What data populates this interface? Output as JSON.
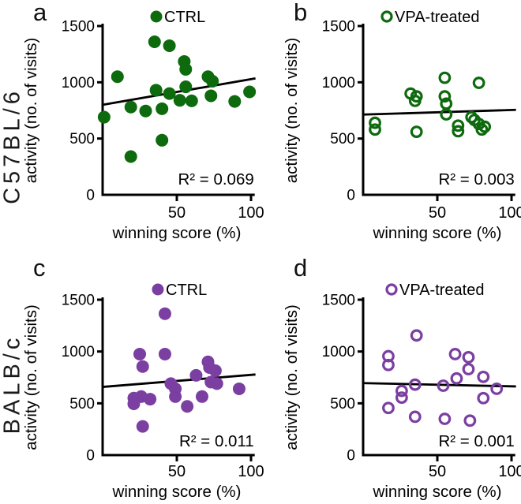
{
  "rows": [
    {
      "label": "C57BL/6"
    },
    {
      "label": "BALB/c"
    }
  ],
  "colors": {
    "ctrl_vpa_green": "#0d6a0d",
    "balb_purple": "#7b3fa2",
    "axis_black": "#000000",
    "trend_black": "#000000"
  },
  "chart_data": [
    {
      "panel_letter": "a",
      "type": "scatter",
      "strain": "C57BL/6",
      "legend": "CTRL",
      "marker": "filled",
      "color": "#0d6a0d",
      "xlabel": "winning score (%)",
      "ylabel": "activity (no. of visits)",
      "xticks": [
        50,
        100
      ],
      "yticks": [
        0,
        500,
        1000,
        1500
      ],
      "xlim": [
        0,
        105
      ],
      "ylim": [
        0,
        1600
      ],
      "r2_label": "R² = 0.069",
      "r_squared": 0.069,
      "points": [
        [
          35,
          1360
        ],
        [
          45,
          1325
        ],
        [
          55,
          1185
        ],
        [
          56,
          1115
        ],
        [
          10,
          1050
        ],
        [
          71,
          1050
        ],
        [
          74,
          1010
        ],
        [
          56,
          960
        ],
        [
          36,
          930
        ],
        [
          45,
          900
        ],
        [
          99,
          915
        ],
        [
          52,
          840
        ],
        [
          60,
          835
        ],
        [
          73,
          880
        ],
        [
          89,
          830
        ],
        [
          19,
          780
        ],
        [
          29,
          745
        ],
        [
          40,
          765
        ],
        [
          1,
          690
        ],
        [
          40,
          485
        ],
        [
          19,
          340
        ]
      ],
      "trend": {
        "x": [
          0,
          103
        ],
        "y": [
          800,
          1035
        ]
      }
    },
    {
      "panel_letter": "b",
      "type": "scatter",
      "strain": "C57BL/6",
      "legend": "VPA-treated",
      "marker": "open",
      "color": "#0d6a0d",
      "xlabel": "winning score (%)",
      "ylabel": "activity (no. of visits)",
      "xticks": [
        50,
        100
      ],
      "yticks": [
        0,
        500,
        1000,
        1500
      ],
      "xlim": [
        0,
        105
      ],
      "ylim": [
        0,
        1600
      ],
      "r2_label": "R² = 0.003",
      "r_squared": 0.003,
      "points": [
        [
          55,
          1040
        ],
        [
          78,
          995
        ],
        [
          32,
          900
        ],
        [
          36,
          875
        ],
        [
          55,
          875
        ],
        [
          35,
          835
        ],
        [
          56,
          810
        ],
        [
          56,
          715
        ],
        [
          8,
          640
        ],
        [
          8,
          580
        ],
        [
          36,
          560
        ],
        [
          64,
          615
        ],
        [
          64,
          565
        ],
        [
          73,
          690
        ],
        [
          75,
          665
        ],
        [
          78,
          630
        ],
        [
          82,
          605
        ],
        [
          80,
          580
        ]
      ],
      "trend": {
        "x": [
          0,
          103
        ],
        "y": [
          713,
          755
        ]
      }
    },
    {
      "panel_letter": "c",
      "type": "scatter",
      "strain": "BALB/c",
      "legend": "CTRL",
      "marker": "filled",
      "color": "#7b3fa2",
      "xlabel": "winning score (%)",
      "ylabel": "activity (no. of visits)",
      "xticks": [
        50,
        100
      ],
      "yticks": [
        0,
        500,
        1000,
        1500
      ],
      "xlim": [
        0,
        105
      ],
      "ylim": [
        0,
        1600
      ],
      "r2_label": "R² = 0.011",
      "r_squared": 0.011,
      "points": [
        [
          42,
          1365
        ],
        [
          25,
          975
        ],
        [
          42,
          975
        ],
        [
          71,
          900
        ],
        [
          27,
          855
        ],
        [
          72,
          845
        ],
        [
          76,
          815
        ],
        [
          63,
          770
        ],
        [
          73,
          705
        ],
        [
          46,
          690
        ],
        [
          77,
          690
        ],
        [
          49,
          640
        ],
        [
          92,
          640
        ],
        [
          26,
          565
        ],
        [
          21,
          550
        ],
        [
          32,
          540
        ],
        [
          49,
          565
        ],
        [
          67,
          565
        ],
        [
          21,
          495
        ],
        [
          57,
          470
        ],
        [
          27,
          277
        ]
      ],
      "trend": {
        "x": [
          0,
          103
        ],
        "y": [
          658,
          778
        ]
      }
    },
    {
      "panel_letter": "d",
      "type": "scatter",
      "strain": "BALB/c",
      "legend": "VPA-treated",
      "marker": "open",
      "color": "#7b3fa2",
      "xlabel": "winning score (%)",
      "ylabel": "activity (no. of visits)",
      "xticks": [
        50,
        100
      ],
      "yticks": [
        0,
        500,
        1000,
        1500
      ],
      "xlim": [
        0,
        105
      ],
      "ylim": [
        0,
        1600
      ],
      "r2_label": "R² = 0.001",
      "r_squared": 0.001,
      "points": [
        [
          36,
          1155
        ],
        [
          62,
          975
        ],
        [
          17,
          955
        ],
        [
          71,
          945
        ],
        [
          17,
          870
        ],
        [
          71,
          830
        ],
        [
          63,
          740
        ],
        [
          81,
          755
        ],
        [
          35,
          680
        ],
        [
          54,
          670
        ],
        [
          26,
          620
        ],
        [
          90,
          640
        ],
        [
          26,
          555
        ],
        [
          81,
          550
        ],
        [
          17,
          455
        ],
        [
          35,
          370
        ],
        [
          55,
          350
        ],
        [
          72,
          333
        ]
      ],
      "trend": {
        "x": [
          0,
          103
        ],
        "y": [
          695,
          663
        ]
      }
    }
  ]
}
